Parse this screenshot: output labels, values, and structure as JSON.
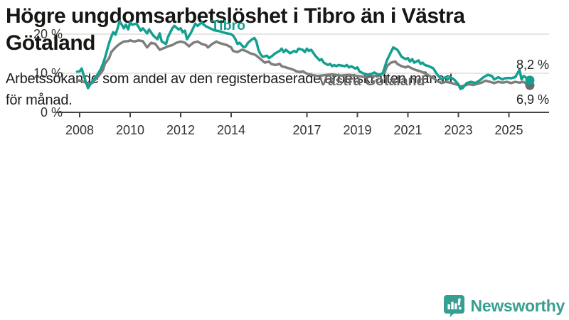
{
  "title_lines": [
    "Högre ungdomsarbetslöshet i Tibro än i Västra",
    "Götaland"
  ],
  "subtitle_lines": [
    "Arbetssökande som andel av den registerbaserade arbetskraften månad",
    "för månad."
  ],
  "footer": {
    "brand": "Newsworthy",
    "logo_icon": "bar-chart-speech-bubble-icon",
    "brand_color": "#379f92"
  },
  "colors": {
    "tibro": "#14a090",
    "vastra_gotaland": "#7e7e7e",
    "vastra_gotaland_dark": "#6b6b6b",
    "grid": "#dedede",
    "axis": "#444444",
    "tick_text": "#333333",
    "end_label_text": "#222222"
  },
  "chart_data": {
    "type": "line",
    "title": "Högre ungdomsarbetslöshet i Tibro än i Västra Götaland",
    "subtitle": "Arbetssökande som andel av den registerbaserade arbetskraften månad för månad.",
    "unit": "%",
    "x_axis": {
      "tick_values": [
        2008,
        2010,
        2012,
        2014,
        2017,
        2019,
        2021,
        2023,
        2025
      ],
      "tick_labels": [
        "2008",
        "2010",
        "2012",
        "2014",
        "2017",
        "2019",
        "2021",
        "2023",
        "2025"
      ],
      "range": [
        2007.9,
        2025.92
      ]
    },
    "y_axis": {
      "tick_values": [
        0,
        10,
        20
      ],
      "tick_labels": [
        "0 %",
        "10 %",
        "20 %"
      ],
      "range": [
        0,
        27
      ],
      "grid": true
    },
    "legend_position": "inline-labels",
    "annotations": [
      {
        "text": "Tibro",
        "x": 2013.2,
        "y": 21.1,
        "series": "Tibro"
      },
      {
        "text": "Västra Götaland",
        "x": 2017.46,
        "y": 6.9,
        "series": "Västra Götaland"
      }
    ],
    "series": [
      {
        "name": "Västra Götaland",
        "end_label": "6,9 %",
        "end_value": 6.9,
        "end_label_side": "below",
        "points": [
          [
            2007.9,
            8.2
          ],
          [
            2008.0,
            8.1
          ],
          [
            2008.17,
            7.8
          ],
          [
            2008.33,
            7.2
          ],
          [
            2008.5,
            7.5
          ],
          [
            2008.58,
            8.1
          ],
          [
            2008.75,
            9.3
          ],
          [
            2008.92,
            10.8
          ],
          [
            2009.0,
            12.4
          ],
          [
            2009.17,
            13.9
          ],
          [
            2009.25,
            15.4
          ],
          [
            2009.42,
            16.6
          ],
          [
            2009.58,
            17.5
          ],
          [
            2009.75,
            18.1
          ],
          [
            2009.92,
            18.2
          ],
          [
            2010.0,
            18.4
          ],
          [
            2010.17,
            18.1
          ],
          [
            2010.33,
            18.4
          ],
          [
            2010.5,
            18.2
          ],
          [
            2010.67,
            16.6
          ],
          [
            2010.83,
            17.8
          ],
          [
            2011.0,
            17.5
          ],
          [
            2011.17,
            16.0
          ],
          [
            2011.33,
            16.4
          ],
          [
            2011.5,
            16.9
          ],
          [
            2011.67,
            17.2
          ],
          [
            2011.83,
            17.8
          ],
          [
            2012.0,
            18.1
          ],
          [
            2012.17,
            17.8
          ],
          [
            2012.33,
            16.9
          ],
          [
            2012.5,
            17.8
          ],
          [
            2012.67,
            18.1
          ],
          [
            2012.83,
            17.5
          ],
          [
            2013.0,
            17.2
          ],
          [
            2013.08,
            16.6
          ],
          [
            2013.25,
            17.5
          ],
          [
            2013.42,
            18.1
          ],
          [
            2013.5,
            17.8
          ],
          [
            2013.67,
            17.5
          ],
          [
            2013.83,
            17.2
          ],
          [
            2014.0,
            16.6
          ],
          [
            2014.08,
            15.7
          ],
          [
            2014.25,
            15.4
          ],
          [
            2014.42,
            16.0
          ],
          [
            2014.58,
            15.7
          ],
          [
            2014.75,
            15.1
          ],
          [
            2014.92,
            14.8
          ],
          [
            2015.0,
            14.5
          ],
          [
            2015.17,
            13.6
          ],
          [
            2015.33,
            12.7
          ],
          [
            2015.5,
            13.0
          ],
          [
            2015.58,
            12.4
          ],
          [
            2015.75,
            12.1
          ],
          [
            2015.92,
            12.4
          ],
          [
            2016.0,
            11.8
          ],
          [
            2016.17,
            11.5
          ],
          [
            2016.33,
            11.2
          ],
          [
            2016.5,
            10.8
          ],
          [
            2016.58,
            10.5
          ],
          [
            2016.75,
            10.3
          ],
          [
            2016.83,
            10.5
          ],
          [
            2017.0,
            9.9
          ],
          [
            2017.17,
            9.6
          ],
          [
            2017.42,
            9.3
          ],
          [
            2017.67,
            9.5
          ],
          [
            2018.0,
            9.7
          ],
          [
            2018.33,
            9.4
          ],
          [
            2018.67,
            9.6
          ],
          [
            2019.0,
            9.3
          ],
          [
            2019.33,
            9.0
          ],
          [
            2019.58,
            9.2
          ],
          [
            2019.83,
            9.5
          ],
          [
            2020.08,
            10.2
          ],
          [
            2020.17,
            11.8
          ],
          [
            2020.33,
            12.7
          ],
          [
            2020.5,
            13.0
          ],
          [
            2020.58,
            12.4
          ],
          [
            2020.75,
            11.8
          ],
          [
            2020.92,
            11.5
          ],
          [
            2021.0,
            11.8
          ],
          [
            2021.17,
            11.2
          ],
          [
            2021.33,
            10.8
          ],
          [
            2021.5,
            10.5
          ],
          [
            2021.67,
            10.0
          ],
          [
            2021.83,
            9.4
          ],
          [
            2022.0,
            8.8
          ],
          [
            2022.17,
            8.0
          ],
          [
            2022.33,
            7.5
          ],
          [
            2022.5,
            7.8
          ],
          [
            2022.67,
            7.6
          ],
          [
            2022.83,
            7.3
          ],
          [
            2023.0,
            7.0
          ],
          [
            2023.08,
            6.6
          ],
          [
            2023.25,
            6.9
          ],
          [
            2023.42,
            7.2
          ],
          [
            2023.58,
            7.0
          ],
          [
            2023.75,
            7.3
          ],
          [
            2023.92,
            7.6
          ],
          [
            2024.08,
            8.1
          ],
          [
            2024.25,
            7.8
          ],
          [
            2024.42,
            7.5
          ],
          [
            2024.58,
            7.8
          ],
          [
            2024.75,
            7.6
          ],
          [
            2024.92,
            7.8
          ],
          [
            2025.08,
            7.5
          ],
          [
            2025.25,
            7.8
          ],
          [
            2025.42,
            7.6
          ],
          [
            2025.58,
            7.8
          ],
          [
            2025.67,
            7.4
          ],
          [
            2025.83,
            6.9
          ]
        ]
      },
      {
        "name": "Tibro",
        "end_label": "8,2 %",
        "end_value": 8.2,
        "end_label_side": "above",
        "points": [
          [
            2007.9,
            10.4
          ],
          [
            2008.0,
            10.5
          ],
          [
            2008.08,
            11.2
          ],
          [
            2008.17,
            9.3
          ],
          [
            2008.33,
            6.2
          ],
          [
            2008.5,
            8.0
          ],
          [
            2008.67,
            9.3
          ],
          [
            2008.83,
            11.0
          ],
          [
            2008.92,
            12.4
          ],
          [
            2009.0,
            13.9
          ],
          [
            2009.08,
            15.7
          ],
          [
            2009.17,
            17.8
          ],
          [
            2009.25,
            19.3
          ],
          [
            2009.33,
            20.5
          ],
          [
            2009.42,
            19.9
          ],
          [
            2009.5,
            21.5
          ],
          [
            2009.58,
            23.3
          ],
          [
            2009.67,
            22.4
          ],
          [
            2009.75,
            21.5
          ],
          [
            2009.83,
            22.4
          ],
          [
            2009.92,
            21.2
          ],
          [
            2010.0,
            23.0
          ],
          [
            2010.08,
            22.4
          ],
          [
            2010.25,
            22.7
          ],
          [
            2010.42,
            20.9
          ],
          [
            2010.5,
            21.5
          ],
          [
            2010.67,
            20.2
          ],
          [
            2010.75,
            21.2
          ],
          [
            2010.92,
            19.6
          ],
          [
            2011.08,
            18.7
          ],
          [
            2011.17,
            20.2
          ],
          [
            2011.25,
            18.1
          ],
          [
            2011.42,
            17.5
          ],
          [
            2011.5,
            19.3
          ],
          [
            2011.67,
            21.5
          ],
          [
            2011.75,
            22.1
          ],
          [
            2011.92,
            21.2
          ],
          [
            2012.0,
            21.5
          ],
          [
            2012.08,
            20.5
          ],
          [
            2012.17,
            20.9
          ],
          [
            2012.25,
            18.7
          ],
          [
            2012.42,
            20.5
          ],
          [
            2012.58,
            22.7
          ],
          [
            2012.67,
            22.1
          ],
          [
            2012.83,
            23.0
          ],
          [
            2012.92,
            22.4
          ],
          [
            2013.0,
            22.0
          ],
          [
            2013.17,
            21.5
          ],
          [
            2013.33,
            21.0
          ],
          [
            2013.5,
            20.8
          ],
          [
            2013.67,
            20.5
          ],
          [
            2013.83,
            20.2
          ],
          [
            2014.0,
            20.0
          ],
          [
            2014.08,
            19.6
          ],
          [
            2014.17,
            18.7
          ],
          [
            2014.25,
            17.5
          ],
          [
            2014.33,
            17.8
          ],
          [
            2014.5,
            16.6
          ],
          [
            2014.58,
            16.9
          ],
          [
            2014.67,
            17.8
          ],
          [
            2014.83,
            18.7
          ],
          [
            2014.92,
            19.0
          ],
          [
            2015.0,
            18.1
          ],
          [
            2015.08,
            16.0
          ],
          [
            2015.17,
            14.8
          ],
          [
            2015.25,
            14.2
          ],
          [
            2015.42,
            14.5
          ],
          [
            2015.5,
            13.9
          ],
          [
            2015.58,
            14.2
          ],
          [
            2015.75,
            15.1
          ],
          [
            2015.92,
            15.7
          ],
          [
            2016.0,
            16.3
          ],
          [
            2016.08,
            15.4
          ],
          [
            2016.17,
            16.0
          ],
          [
            2016.33,
            15.1
          ],
          [
            2016.5,
            15.7
          ],
          [
            2016.58,
            15.4
          ],
          [
            2016.67,
            16.3
          ],
          [
            2016.83,
            16.0
          ],
          [
            2016.92,
            15.4
          ],
          [
            2017.0,
            16.3
          ],
          [
            2017.08,
            15.7
          ],
          [
            2017.17,
            16.0
          ],
          [
            2017.33,
            14.5
          ],
          [
            2017.42,
            13.9
          ],
          [
            2017.5,
            13.3
          ],
          [
            2017.58,
            13.6
          ],
          [
            2017.67,
            12.7
          ],
          [
            2017.83,
            12.1
          ],
          [
            2017.92,
            12.4
          ],
          [
            2018.0,
            11.8
          ],
          [
            2018.08,
            12.1
          ],
          [
            2018.17,
            11.8
          ],
          [
            2018.25,
            12.1
          ],
          [
            2018.5,
            11.8
          ],
          [
            2018.58,
            12.1
          ],
          [
            2018.67,
            11.5
          ],
          [
            2018.75,
            11.8
          ],
          [
            2018.92,
            11.2
          ],
          [
            2019.0,
            11.5
          ],
          [
            2019.08,
            10.5
          ],
          [
            2019.25,
            9.9
          ],
          [
            2019.42,
            9.6
          ],
          [
            2019.58,
            9.9
          ],
          [
            2019.67,
            10.2
          ],
          [
            2019.83,
            9.6
          ],
          [
            2020.0,
            9.9
          ],
          [
            2020.08,
            11.5
          ],
          [
            2020.17,
            13.3
          ],
          [
            2020.33,
            15.4
          ],
          [
            2020.42,
            16.6
          ],
          [
            2020.58,
            16.0
          ],
          [
            2020.67,
            15.1
          ],
          [
            2020.75,
            14.2
          ],
          [
            2020.92,
            13.6
          ],
          [
            2021.0,
            13.9
          ],
          [
            2021.08,
            13.0
          ],
          [
            2021.17,
            13.6
          ],
          [
            2021.25,
            12.7
          ],
          [
            2021.42,
            13.3
          ],
          [
            2021.5,
            12.4
          ],
          [
            2021.58,
            12.7
          ],
          [
            2021.67,
            12.1
          ],
          [
            2021.83,
            11.8
          ],
          [
            2021.92,
            11.5
          ],
          [
            2022.0,
            11.3
          ],
          [
            2022.08,
            10.5
          ],
          [
            2022.17,
            9.6
          ],
          [
            2022.25,
            9.0
          ],
          [
            2022.33,
            8.4
          ],
          [
            2022.42,
            8.7
          ],
          [
            2022.5,
            9.0
          ],
          [
            2022.58,
            8.4
          ],
          [
            2022.67,
            9.0
          ],
          [
            2022.83,
            8.4
          ],
          [
            2023.0,
            7.2
          ],
          [
            2023.08,
            6.0
          ],
          [
            2023.17,
            6.2
          ],
          [
            2023.33,
            7.5
          ],
          [
            2023.5,
            7.8
          ],
          [
            2023.67,
            7.5
          ],
          [
            2023.83,
            8.1
          ],
          [
            2024.0,
            9.0
          ],
          [
            2024.17,
            9.6
          ],
          [
            2024.33,
            9.3
          ],
          [
            2024.42,
            8.4
          ],
          [
            2024.58,
            9.0
          ],
          [
            2024.75,
            8.4
          ],
          [
            2024.83,
            8.7
          ],
          [
            2025.0,
            8.8
          ],
          [
            2025.08,
            8.7
          ],
          [
            2025.25,
            9.0
          ],
          [
            2025.42,
            10.9
          ],
          [
            2025.5,
            8.4
          ],
          [
            2025.58,
            9.3
          ],
          [
            2025.75,
            8.6
          ],
          [
            2025.83,
            8.2
          ]
        ]
      }
    ]
  }
}
